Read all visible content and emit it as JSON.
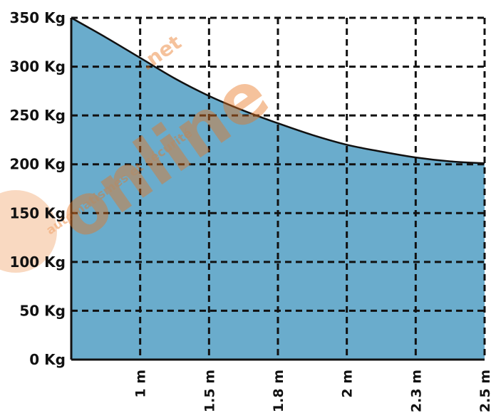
{
  "watermark": {
    "logo_text": "online",
    "logo_suffix": ".net",
    "tagline": "automatismes et sécurité",
    "color": "#e8731e"
  },
  "colors": {
    "fill": "#6aaccc",
    "grid": "#111111",
    "curve": "#111111"
  },
  "chart_data": {
    "type": "area",
    "x_categories": [
      "1 m",
      "1.5 m",
      "1.8 m",
      "2 m",
      "2.3 m",
      "2.5 m"
    ],
    "x_positions": [
      1,
      2,
      3,
      4,
      5,
      6
    ],
    "xlim": [
      0,
      6
    ],
    "y_ticks": [
      "0 Kg",
      "50 Kg",
      "100 Kg",
      "150 Kg",
      "200 Kg",
      "250 Kg",
      "300 Kg",
      "350 Kg"
    ],
    "ylim": [
      0,
      350
    ],
    "grid": true,
    "series": [
      {
        "x": [
          0,
          0.5,
          1,
          1.5,
          2,
          2.5,
          3,
          3.5,
          4,
          4.5,
          5,
          5.5,
          6
        ],
        "values": [
          350,
          330,
          309,
          288,
          270,
          255,
          242,
          230,
          220,
          213,
          207,
          203,
          201
        ]
      }
    ]
  }
}
